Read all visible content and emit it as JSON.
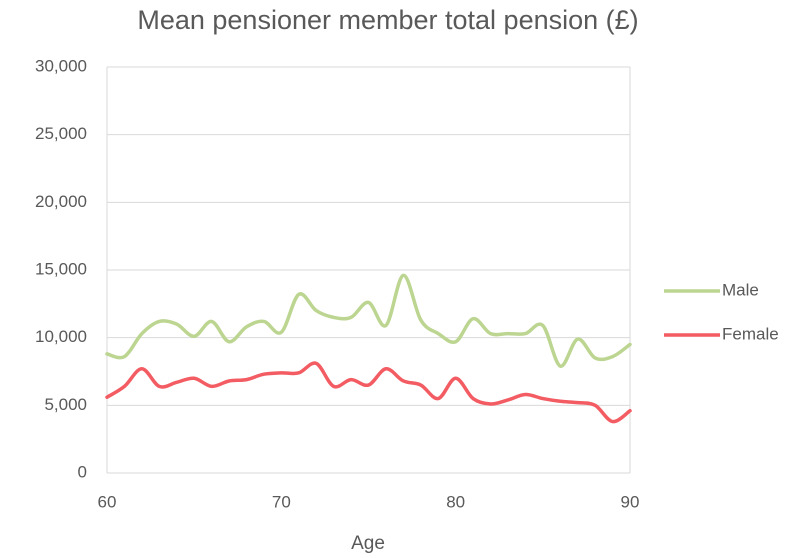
{
  "chart_data": {
    "type": "line",
    "title": "Mean pensioner member total pension (£)",
    "x_label": "Age",
    "x": [
      60,
      61,
      62,
      63,
      64,
      65,
      66,
      67,
      68,
      69,
      70,
      71,
      72,
      73,
      74,
      75,
      76,
      77,
      78,
      79,
      80,
      81,
      82,
      83,
      84,
      85,
      86,
      87,
      88,
      89,
      90
    ],
    "series": [
      {
        "name": "Male",
        "color": "#bcd590",
        "values": [
          8800,
          8600,
          10300,
          11200,
          11000,
          10100,
          11200,
          9700,
          10800,
          11200,
          10400,
          13200,
          12000,
          11500,
          11500,
          12600,
          10900,
          14600,
          11300,
          10300,
          9700,
          11400,
          10300,
          10300,
          10300,
          10900,
          7900,
          9900,
          8500,
          8600,
          9500
        ]
      },
      {
        "name": "Female",
        "color": "#f25c62",
        "values": [
          5600,
          6400,
          7700,
          6400,
          6700,
          7000,
          6400,
          6800,
          6900,
          7300,
          7400,
          7400,
          8100,
          6400,
          6900,
          6500,
          7700,
          6800,
          6500,
          5500,
          7000,
          5500,
          5100,
          5400,
          5800,
          5500,
          5300,
          5200,
          5000,
          3800,
          4600
        ]
      }
    ],
    "xlim": [
      60,
      90
    ],
    "xticks": [
      60,
      70,
      80,
      90
    ],
    "ylim": [
      0,
      30000
    ],
    "yticks": [
      0,
      {
        "value": 5000,
        "label": "5,000"
      },
      {
        "value": 10000,
        "label": "10,000"
      },
      {
        "value": 15000,
        "label": "15,000"
      },
      {
        "value": 20000,
        "label": "20,000"
      },
      {
        "value": 25000,
        "label": "25,000"
      },
      {
        "value": 30000,
        "label": "30,000"
      }
    ],
    "grid": true,
    "legend": "right"
  }
}
